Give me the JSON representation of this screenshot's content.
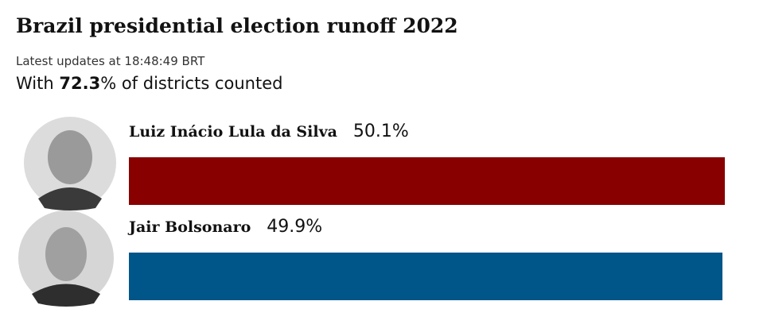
{
  "chart_data": {
    "type": "hbar",
    "title": "Brazil presidential election runoff 2022",
    "update_time": "Latest updates at 18:48:49 BRT",
    "subtitle_prefix": "With",
    "counted": 72.3,
    "subtitle_suffix": "% of districts counted",
    "categories": [
      "Luiz Inácio Lula da Silva",
      "Jair Bolsonaro"
    ],
    "values": [
      50.1,
      49.9
    ],
    "value_labels": [
      "50.1%",
      "49.9%"
    ],
    "colors": [
      "#880000",
      "#005689"
    ]
  }
}
